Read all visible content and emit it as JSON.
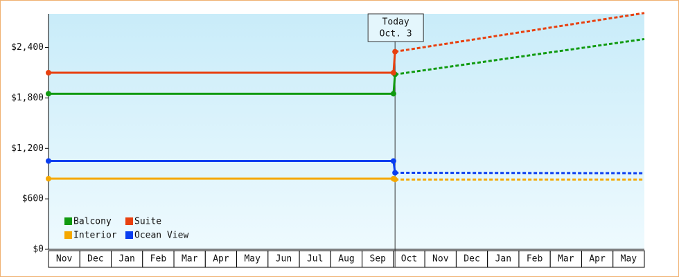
{
  "chart_data": {
    "type": "line",
    "categories": [
      "Nov",
      "Dec",
      "Jan",
      "Feb",
      "Mar",
      "Apr",
      "May",
      "Jun",
      "Jul",
      "Aug",
      "Sep",
      "Oct",
      "Nov",
      "Dec",
      "Jan",
      "Feb",
      "Mar",
      "Apr",
      "May"
    ],
    "x": [
      0,
      11,
      11.05
    ],
    "projected_x": [
      11.05,
      19
    ],
    "xlim": [
      0,
      19
    ],
    "ylim": [
      0,
      2800
    ],
    "yticks": [
      {
        "value": 0,
        "label": "$0"
      },
      {
        "value": 600,
        "label": "$600"
      },
      {
        "value": 1200,
        "label": "$1,200"
      },
      {
        "value": 1800,
        "label": "$1,800"
      },
      {
        "value": 2400,
        "label": "$2,400"
      }
    ],
    "annotation": {
      "x": 11.05,
      "lines": [
        "Today",
        "Oct. 3"
      ]
    },
    "series": [
      {
        "name": "Balcony",
        "color": "#109a10",
        "values": [
          1850,
          1850,
          2080
        ],
        "projected": [
          2080,
          2500
        ]
      },
      {
        "name": "Suite",
        "color": "#e8400f",
        "values": [
          2100,
          2100,
          2350
        ],
        "projected": [
          2350,
          2810
        ]
      },
      {
        "name": "Interior",
        "color": "#f5a800",
        "values": [
          840,
          840,
          830
        ],
        "projected": [
          830,
          830
        ]
      },
      {
        "name": "Ocean View",
        "color": "#0a3ef0",
        "values": [
          1050,
          1050,
          910
        ],
        "projected": [
          910,
          905
        ]
      }
    ]
  }
}
